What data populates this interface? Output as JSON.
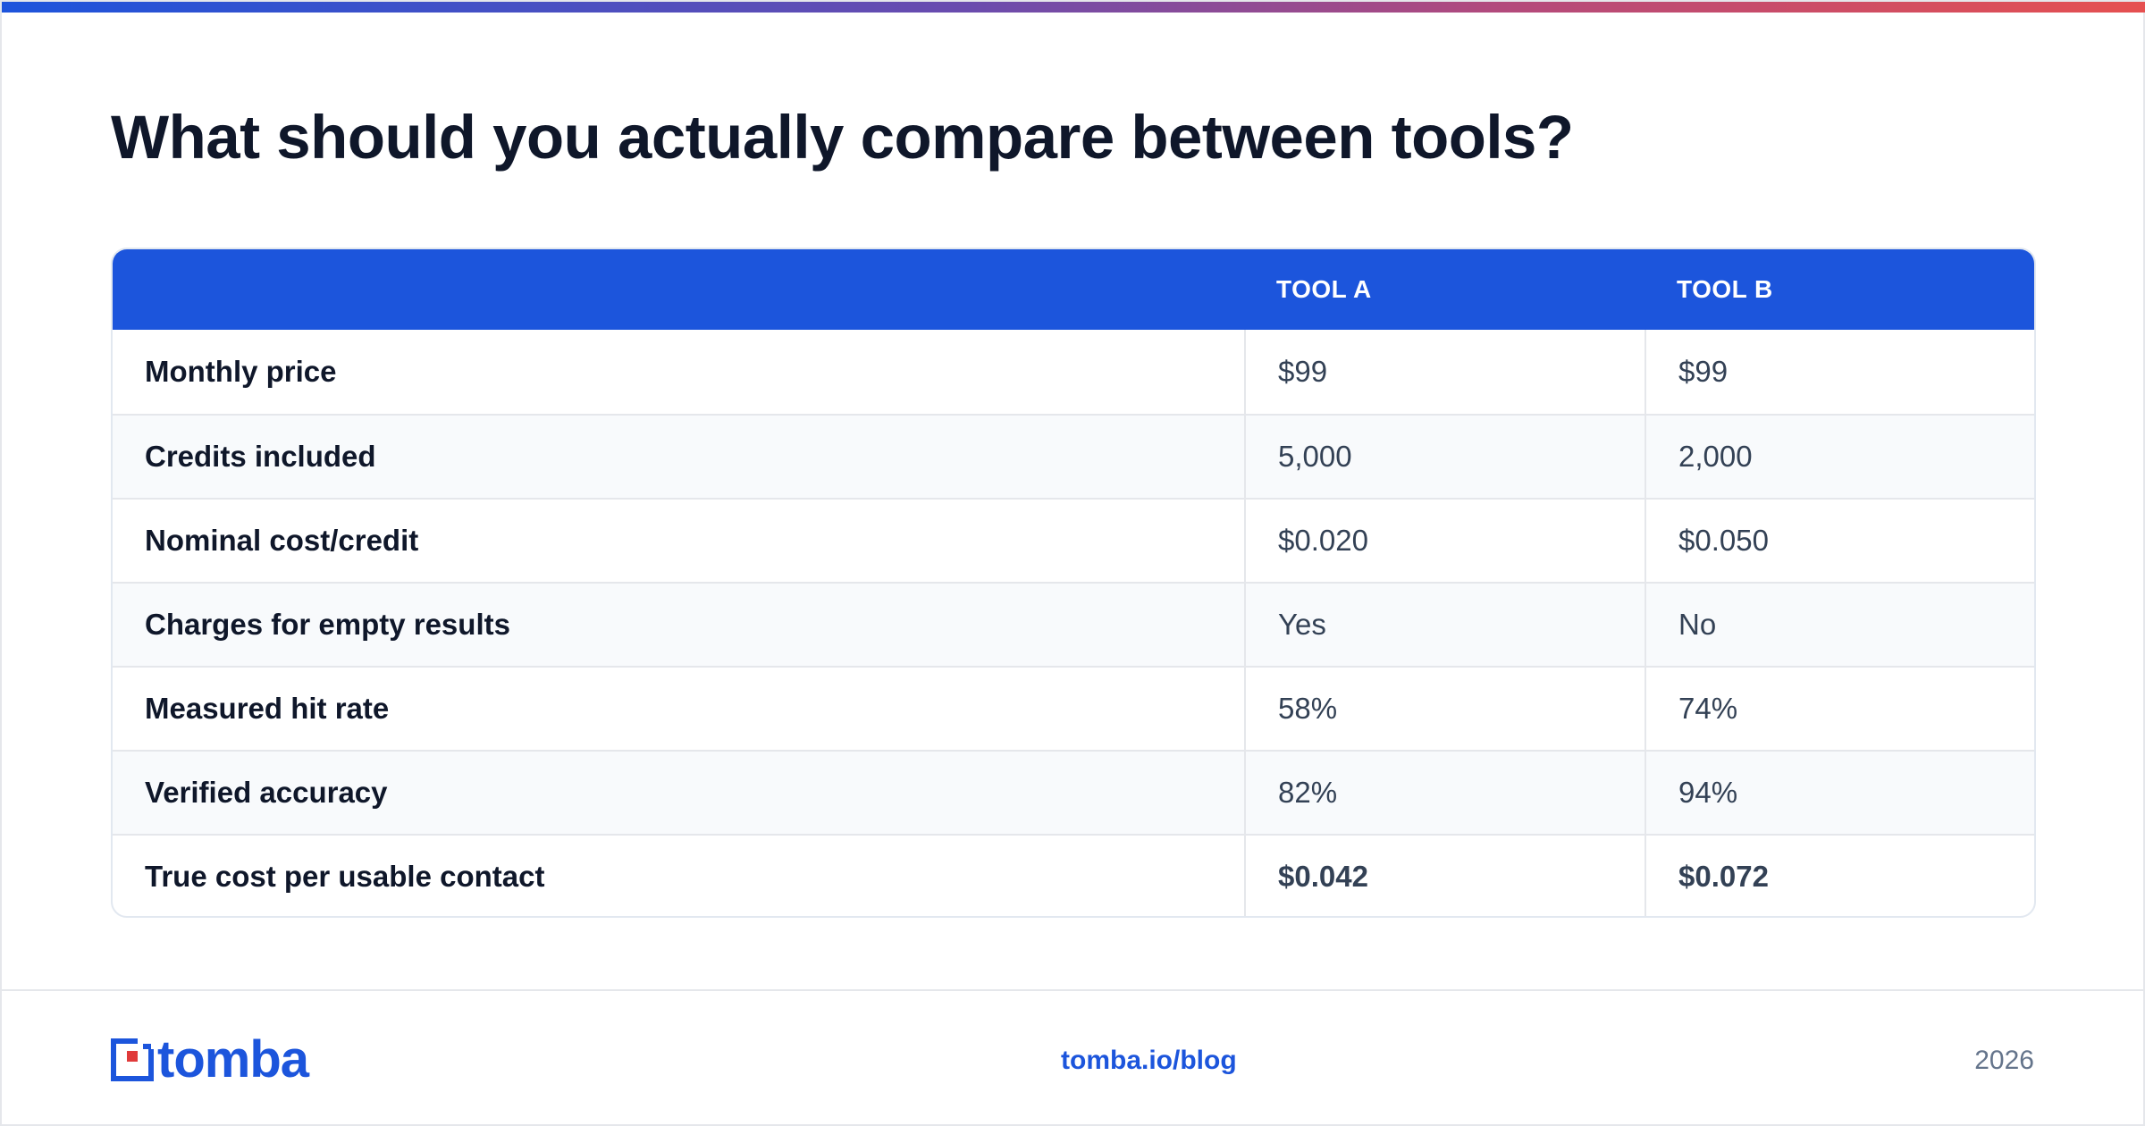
{
  "title": "What should you actually compare between tools?",
  "colors": {
    "accent": "#1c55dc",
    "gradient_start": "#1d54dc",
    "gradient_end": "#e65050",
    "logo_red": "#e03a3a",
    "heading": "#0f172a",
    "body_text": "#334155"
  },
  "table": {
    "headers": [
      "",
      "TOOL A",
      "TOOL B"
    ],
    "rows": [
      {
        "label": "Monthly price",
        "tool_a": "$99",
        "tool_b": "$99"
      },
      {
        "label": "Credits included",
        "tool_a": "5,000",
        "tool_b": "2,000"
      },
      {
        "label": "Nominal cost/credit",
        "tool_a": "$0.020",
        "tool_b": "$0.050"
      },
      {
        "label": "Charges for empty results",
        "tool_a": "Yes",
        "tool_b": "No"
      },
      {
        "label": "Measured hit rate",
        "tool_a": "58%",
        "tool_b": "74%"
      },
      {
        "label": "Verified accuracy",
        "tool_a": "82%",
        "tool_b": "94%"
      },
      {
        "label": "True cost per usable contact",
        "tool_a": "$0.042",
        "tool_b": "$0.072"
      }
    ]
  },
  "footer": {
    "logo_text": "tomba",
    "logo_icon": "tomba-logo-icon",
    "link": "tomba.io/blog",
    "year": "2026"
  }
}
